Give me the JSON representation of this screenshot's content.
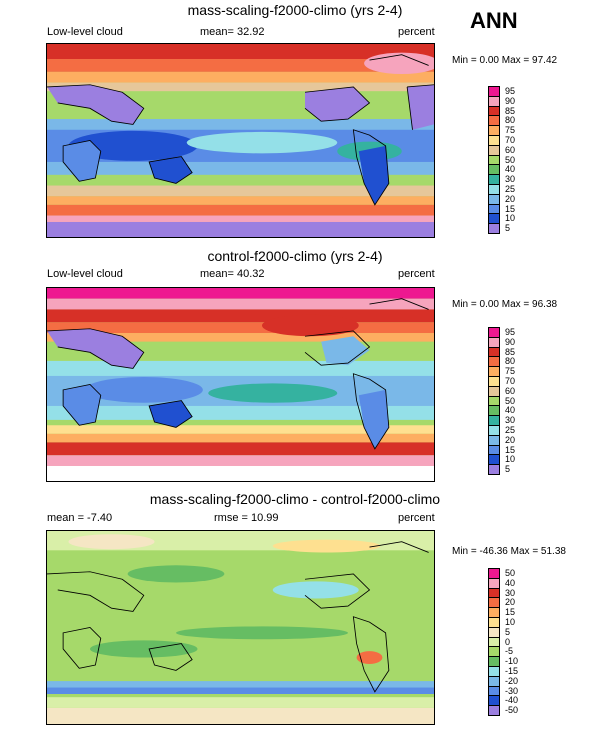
{
  "season": "ANN",
  "panels": [
    {
      "title": "mass-scaling-f2000-climo (yrs 2-4)",
      "left": "Low-level cloud",
      "center": "mean=  32.92",
      "right": "percent",
      "minmax": "Min =   0.00 Max =  97.42",
      "levels": [
        "95",
        "90",
        "85",
        "80",
        "75",
        "70",
        "60",
        "50",
        "40",
        "30",
        "25",
        "20",
        "15",
        "10",
        "5"
      ],
      "colors": [
        "#ee1890",
        "#f6a4bd",
        "#d73027",
        "#f46d43",
        "#fdae61",
        "#fee090",
        "#e6c79a",
        "#a6d96a",
        "#66bd63",
        "#35b2a0",
        "#94e0e8",
        "#7ab8e8",
        "#5a8ce6",
        "#2050d0",
        "#9b7fe0"
      ]
    },
    {
      "title": "control-f2000-climo (yrs 2-4)",
      "left": "Low-level cloud",
      "center": "mean=  40.32",
      "right": "percent",
      "minmax": "Min =   0.00 Max =  96.38",
      "levels": [
        "95",
        "90",
        "85",
        "80",
        "75",
        "70",
        "60",
        "50",
        "40",
        "30",
        "25",
        "20",
        "15",
        "10",
        "5"
      ],
      "colors": [
        "#ee1890",
        "#f6a4bd",
        "#d73027",
        "#f46d43",
        "#fdae61",
        "#fee090",
        "#e6c79a",
        "#a6d96a",
        "#66bd63",
        "#35b2a0",
        "#94e0e8",
        "#7ab8e8",
        "#5a8ce6",
        "#2050d0",
        "#9b7fe0"
      ]
    },
    {
      "title": "mass-scaling-f2000-climo - control-f2000-climo",
      "left": "mean =  -7.40",
      "center": "rmse =  10.99",
      "right": "percent",
      "minmax": "Min = -46.36 Max =  51.38",
      "levels": [
        "50",
        "40",
        "30",
        "20",
        "15",
        "10",
        "5",
        "0",
        "-5",
        "-10",
        "-15",
        "-20",
        "-30",
        "-40",
        "-50"
      ],
      "colors": [
        "#ee1890",
        "#f6a4bd",
        "#d73027",
        "#f46d43",
        "#fdae61",
        "#fee090",
        "#f5e6c4",
        "#d9efa8",
        "#a6d96a",
        "#66bd63",
        "#94e0e8",
        "#7ab8e8",
        "#5a8ce6",
        "#2050d0",
        "#9b7fe0"
      ]
    }
  ]
}
